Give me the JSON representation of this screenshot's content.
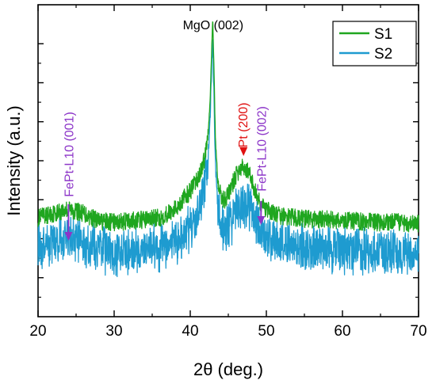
{
  "chart_data": {
    "type": "line",
    "title": "",
    "xlabel": "2θ (deg.)",
    "ylabel": "Intensity (a.u.)",
    "xlim": [
      20,
      70
    ],
    "x_ticks": [
      20,
      30,
      40,
      50,
      60,
      70
    ],
    "y_tick_labels": "none",
    "grid": false,
    "legend_position": "top-right",
    "series": [
      {
        "name": "S1",
        "color": "#1fa61f",
        "x": [
          20,
          22,
          24,
          26,
          28,
          30,
          32,
          34,
          36,
          38,
          39,
          40,
          41,
          41.8,
          42.3,
          42.6,
          42.8,
          42.95,
          43.1,
          43.3,
          43.6,
          44,
          44.5,
          45,
          45.5,
          46,
          46.5,
          47,
          47.5,
          48,
          48.5,
          49,
          49.5,
          50,
          51,
          52,
          54,
          56,
          58,
          60,
          62,
          64,
          66,
          68,
          70
        ],
        "values": [
          0.33,
          0.345,
          0.36,
          0.345,
          0.32,
          0.315,
          0.32,
          0.325,
          0.33,
          0.36,
          0.39,
          0.42,
          0.46,
          0.52,
          0.6,
          0.72,
          0.88,
          1.0,
          0.85,
          0.6,
          0.46,
          0.4,
          0.39,
          0.41,
          0.44,
          0.47,
          0.49,
          0.5,
          0.49,
          0.46,
          0.42,
          0.39,
          0.37,
          0.355,
          0.345,
          0.335,
          0.33,
          0.325,
          0.325,
          0.32,
          0.32,
          0.315,
          0.315,
          0.315,
          0.31
        ]
      },
      {
        "name": "S2",
        "color": "#1e9bd0",
        "x": [
          20,
          22,
          24,
          26,
          28,
          30,
          32,
          34,
          36,
          38,
          39,
          40,
          41,
          41.8,
          42.3,
          42.6,
          42.8,
          42.95,
          43.1,
          43.3,
          43.6,
          44,
          44.5,
          45,
          45.5,
          46,
          46.5,
          47,
          47.5,
          48,
          48.5,
          49,
          49.5,
          50,
          51,
          52,
          54,
          56,
          58,
          60,
          62,
          64,
          66,
          68,
          70
        ],
        "values": [
          0.24,
          0.255,
          0.27,
          0.25,
          0.225,
          0.215,
          0.22,
          0.225,
          0.23,
          0.25,
          0.27,
          0.3,
          0.35,
          0.42,
          0.52,
          0.65,
          0.82,
          0.93,
          0.76,
          0.52,
          0.38,
          0.31,
          0.29,
          0.3,
          0.32,
          0.35,
          0.37,
          0.38,
          0.375,
          0.36,
          0.33,
          0.3,
          0.28,
          0.265,
          0.255,
          0.245,
          0.235,
          0.23,
          0.225,
          0.22,
          0.22,
          0.215,
          0.215,
          0.21,
          0.21
        ]
      }
    ],
    "annotations": [
      {
        "text": "MgO (002)",
        "color": "#000000",
        "x": 43,
        "arrow": false
      },
      {
        "text": "Pt (200)",
        "color": "#e01010",
        "x": 47,
        "arrow": true
      },
      {
        "text": "FePt-L10 (001)",
        "color": "#8c35c8",
        "x": 24,
        "arrow": true
      },
      {
        "text": "FePt-L10 (002)",
        "color": "#8c35c8",
        "x": 49.3,
        "arrow": true
      }
    ]
  }
}
